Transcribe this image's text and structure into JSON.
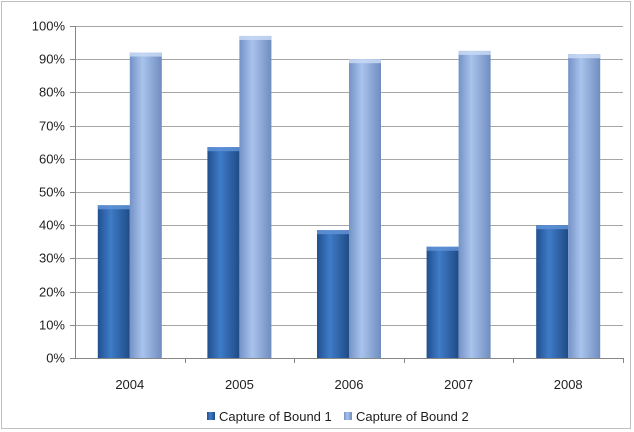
{
  "chart_data": {
    "type": "bar",
    "title": "",
    "xlabel": "",
    "ylabel": "",
    "categories": [
      "2004",
      "2005",
      "2006",
      "2007",
      "2008"
    ],
    "series": [
      {
        "name": "Capture of Bound 1",
        "values": [
          46,
          63.5,
          38.5,
          33.5,
          40
        ],
        "color": "#2f67ad"
      },
      {
        "name": "Capture of Bound 2",
        "values": [
          92,
          97,
          90,
          92.5,
          91.5
        ],
        "color": "#8fabd9"
      }
    ],
    "ylim": [
      0,
      100
    ],
    "yticks": [
      "0%",
      "10%",
      "20%",
      "30%",
      "40%",
      "50%",
      "60%",
      "70%",
      "80%",
      "90%",
      "100%"
    ],
    "grid": true,
    "legend_position": "bottom"
  }
}
